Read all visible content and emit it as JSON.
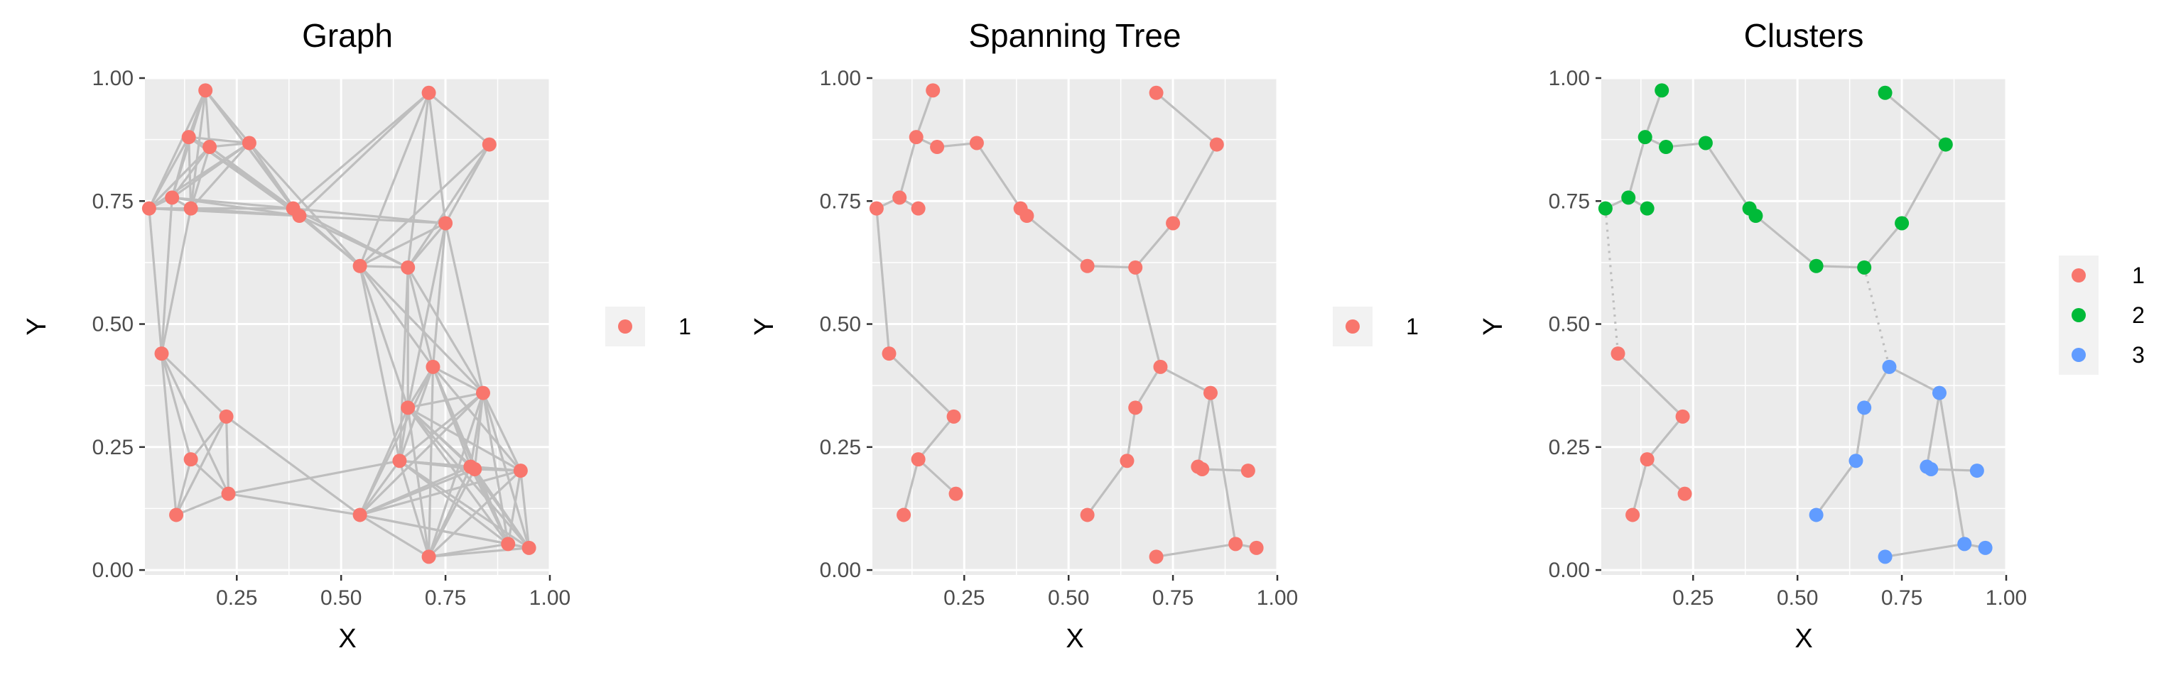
{
  "colors": {
    "panel_bg": "#EBEBEB",
    "grid": "#FFFFFF",
    "edge": "#BEBEBE",
    "tick_text": "#4D4D4D",
    "title_text": "#000000",
    "legend_key_bg": "#F2F2F2"
  },
  "chart_data": [
    {
      "type": "scatter",
      "title": "Graph",
      "xlabel": "X",
      "ylabel": "Y",
      "xlim": [
        0.03,
        1.0
      ],
      "ylim": [
        -0.01,
        1.0
      ],
      "x_ticks": [
        "0.25",
        "0.50",
        "0.75",
        "1.00"
      ],
      "y_ticks": [
        "0.00",
        "0.25",
        "0.50",
        "0.75",
        "1.00"
      ],
      "grid": true,
      "legend": {
        "position": "right",
        "entries": [
          {
            "label": "1",
            "color": "#F8766D"
          }
        ]
      },
      "edge_mode": "complete-local",
      "points": [
        {
          "x": 0.04,
          "y": 0.735,
          "c": 1
        },
        {
          "x": 0.07,
          "y": 0.44,
          "c": 1
        },
        {
          "x": 0.095,
          "y": 0.757,
          "c": 1
        },
        {
          "x": 0.135,
          "y": 0.88,
          "c": 1
        },
        {
          "x": 0.14,
          "y": 0.735,
          "c": 1
        },
        {
          "x": 0.14,
          "y": 0.225,
          "c": 1
        },
        {
          "x": 0.105,
          "y": 0.112,
          "c": 1
        },
        {
          "x": 0.175,
          "y": 0.975,
          "c": 1
        },
        {
          "x": 0.185,
          "y": 0.86,
          "c": 1
        },
        {
          "x": 0.28,
          "y": 0.868,
          "c": 1
        },
        {
          "x": 0.225,
          "y": 0.312,
          "c": 1
        },
        {
          "x": 0.23,
          "y": 0.155,
          "c": 1
        },
        {
          "x": 0.385,
          "y": 0.735,
          "c": 1
        },
        {
          "x": 0.4,
          "y": 0.72,
          "c": 1
        },
        {
          "x": 0.545,
          "y": 0.618,
          "c": 1
        },
        {
          "x": 0.545,
          "y": 0.112,
          "c": 1
        },
        {
          "x": 0.66,
          "y": 0.615,
          "c": 1
        },
        {
          "x": 0.64,
          "y": 0.222,
          "c": 1
        },
        {
          "x": 0.66,
          "y": 0.33,
          "c": 1
        },
        {
          "x": 0.71,
          "y": 0.97,
          "c": 1
        },
        {
          "x": 0.75,
          "y": 0.705,
          "c": 1
        },
        {
          "x": 0.72,
          "y": 0.413,
          "c": 1
        },
        {
          "x": 0.71,
          "y": 0.027,
          "c": 1
        },
        {
          "x": 0.855,
          "y": 0.865,
          "c": 1
        },
        {
          "x": 0.84,
          "y": 0.36,
          "c": 1
        },
        {
          "x": 0.81,
          "y": 0.21,
          "c": 1
        },
        {
          "x": 0.82,
          "y": 0.205,
          "c": 1
        },
        {
          "x": 0.93,
          "y": 0.202,
          "c": 1
        },
        {
          "x": 0.9,
          "y": 0.053,
          "c": 1
        },
        {
          "x": 0.95,
          "y": 0.045,
          "c": 1
        }
      ]
    },
    {
      "type": "scatter",
      "title": "Spanning Tree",
      "xlabel": "X",
      "ylabel": "Y",
      "xlim": [
        0.03,
        1.0
      ],
      "ylim": [
        -0.01,
        1.0
      ],
      "x_ticks": [
        "0.25",
        "0.50",
        "0.75",
        "1.00"
      ],
      "y_ticks": [
        "0.00",
        "0.25",
        "0.50",
        "0.75",
        "1.00"
      ],
      "grid": true,
      "legend": {
        "position": "right",
        "entries": [
          {
            "label": "1",
            "color": "#F8766D"
          }
        ]
      },
      "edge_mode": "list",
      "points": [
        {
          "x": 0.04,
          "y": 0.735,
          "c": 1
        },
        {
          "x": 0.07,
          "y": 0.44,
          "c": 1
        },
        {
          "x": 0.095,
          "y": 0.757,
          "c": 1
        },
        {
          "x": 0.135,
          "y": 0.88,
          "c": 1
        },
        {
          "x": 0.14,
          "y": 0.735,
          "c": 1
        },
        {
          "x": 0.14,
          "y": 0.225,
          "c": 1
        },
        {
          "x": 0.105,
          "y": 0.112,
          "c": 1
        },
        {
          "x": 0.175,
          "y": 0.975,
          "c": 1
        },
        {
          "x": 0.185,
          "y": 0.86,
          "c": 1
        },
        {
          "x": 0.28,
          "y": 0.868,
          "c": 1
        },
        {
          "x": 0.225,
          "y": 0.312,
          "c": 1
        },
        {
          "x": 0.23,
          "y": 0.155,
          "c": 1
        },
        {
          "x": 0.385,
          "y": 0.735,
          "c": 1
        },
        {
          "x": 0.4,
          "y": 0.72,
          "c": 1
        },
        {
          "x": 0.545,
          "y": 0.618,
          "c": 1
        },
        {
          "x": 0.545,
          "y": 0.112,
          "c": 1
        },
        {
          "x": 0.66,
          "y": 0.615,
          "c": 1
        },
        {
          "x": 0.64,
          "y": 0.222,
          "c": 1
        },
        {
          "x": 0.66,
          "y": 0.33,
          "c": 1
        },
        {
          "x": 0.71,
          "y": 0.97,
          "c": 1
        },
        {
          "x": 0.75,
          "y": 0.705,
          "c": 1
        },
        {
          "x": 0.72,
          "y": 0.413,
          "c": 1
        },
        {
          "x": 0.71,
          "y": 0.027,
          "c": 1
        },
        {
          "x": 0.855,
          "y": 0.865,
          "c": 1
        },
        {
          "x": 0.84,
          "y": 0.36,
          "c": 1
        },
        {
          "x": 0.81,
          "y": 0.21,
          "c": 1
        },
        {
          "x": 0.82,
          "y": 0.205,
          "c": 1
        },
        {
          "x": 0.93,
          "y": 0.202,
          "c": 1
        },
        {
          "x": 0.9,
          "y": 0.053,
          "c": 1
        },
        {
          "x": 0.95,
          "y": 0.045,
          "c": 1
        }
      ],
      "edges": [
        [
          0,
          1
        ],
        [
          0,
          2
        ],
        [
          2,
          3
        ],
        [
          2,
          4
        ],
        [
          3,
          7
        ],
        [
          3,
          8
        ],
        [
          8,
          9
        ],
        [
          9,
          12
        ],
        [
          12,
          13
        ],
        [
          13,
          14
        ],
        [
          14,
          16
        ],
        [
          16,
          20
        ],
        [
          20,
          23
        ],
        [
          23,
          19
        ],
        [
          16,
          21
        ],
        [
          1,
          10
        ],
        [
          10,
          5
        ],
        [
          5,
          6
        ],
        [
          5,
          11
        ],
        [
          21,
          18
        ],
        [
          18,
          17
        ],
        [
          17,
          15
        ],
        [
          21,
          24
        ],
        [
          24,
          25
        ],
        [
          25,
          26
        ],
        [
          26,
          27
        ],
        [
          24,
          28
        ],
        [
          28,
          22
        ],
        [
          28,
          29
        ]
      ],
      "dotted_edges": []
    },
    {
      "type": "scatter",
      "title": "Clusters",
      "xlabel": "X",
      "ylabel": "Y",
      "xlim": [
        0.03,
        1.0
      ],
      "ylim": [
        -0.01,
        1.0
      ],
      "x_ticks": [
        "0.25",
        "0.50",
        "0.75",
        "1.00"
      ],
      "y_ticks": [
        "0.00",
        "0.25",
        "0.50",
        "0.75",
        "1.00"
      ],
      "grid": true,
      "legend": {
        "position": "right",
        "entries": [
          {
            "label": "1",
            "color": "#F8766D"
          },
          {
            "label": "2",
            "color": "#00BA38"
          },
          {
            "label": "3",
            "color": "#619CFF"
          }
        ]
      },
      "edge_mode": "list",
      "points": [
        {
          "x": 0.04,
          "y": 0.735,
          "c": 2
        },
        {
          "x": 0.07,
          "y": 0.44,
          "c": 1
        },
        {
          "x": 0.095,
          "y": 0.757,
          "c": 2
        },
        {
          "x": 0.135,
          "y": 0.88,
          "c": 2
        },
        {
          "x": 0.14,
          "y": 0.735,
          "c": 2
        },
        {
          "x": 0.14,
          "y": 0.225,
          "c": 1
        },
        {
          "x": 0.105,
          "y": 0.112,
          "c": 1
        },
        {
          "x": 0.175,
          "y": 0.975,
          "c": 2
        },
        {
          "x": 0.185,
          "y": 0.86,
          "c": 2
        },
        {
          "x": 0.28,
          "y": 0.868,
          "c": 2
        },
        {
          "x": 0.225,
          "y": 0.312,
          "c": 1
        },
        {
          "x": 0.23,
          "y": 0.155,
          "c": 1
        },
        {
          "x": 0.385,
          "y": 0.735,
          "c": 2
        },
        {
          "x": 0.4,
          "y": 0.72,
          "c": 2
        },
        {
          "x": 0.545,
          "y": 0.618,
          "c": 2
        },
        {
          "x": 0.545,
          "y": 0.112,
          "c": 3
        },
        {
          "x": 0.66,
          "y": 0.615,
          "c": 2
        },
        {
          "x": 0.64,
          "y": 0.222,
          "c": 3
        },
        {
          "x": 0.66,
          "y": 0.33,
          "c": 3
        },
        {
          "x": 0.71,
          "y": 0.97,
          "c": 2
        },
        {
          "x": 0.75,
          "y": 0.705,
          "c": 2
        },
        {
          "x": 0.72,
          "y": 0.413,
          "c": 3
        },
        {
          "x": 0.71,
          "y": 0.027,
          "c": 3
        },
        {
          "x": 0.855,
          "y": 0.865,
          "c": 2
        },
        {
          "x": 0.84,
          "y": 0.36,
          "c": 3
        },
        {
          "x": 0.81,
          "y": 0.21,
          "c": 3
        },
        {
          "x": 0.82,
          "y": 0.205,
          "c": 3
        },
        {
          "x": 0.93,
          "y": 0.202,
          "c": 3
        },
        {
          "x": 0.9,
          "y": 0.053,
          "c": 3
        },
        {
          "x": 0.95,
          "y": 0.045,
          "c": 3
        }
      ],
      "edges": [
        [
          0,
          2
        ],
        [
          2,
          3
        ],
        [
          2,
          4
        ],
        [
          3,
          7
        ],
        [
          3,
          8
        ],
        [
          8,
          9
        ],
        [
          9,
          12
        ],
        [
          12,
          13
        ],
        [
          13,
          14
        ],
        [
          14,
          16
        ],
        [
          16,
          20
        ],
        [
          20,
          23
        ],
        [
          23,
          19
        ],
        [
          1,
          10
        ],
        [
          10,
          5
        ],
        [
          5,
          6
        ],
        [
          5,
          11
        ],
        [
          21,
          18
        ],
        [
          18,
          17
        ],
        [
          17,
          15
        ],
        [
          21,
          24
        ],
        [
          24,
          25
        ],
        [
          25,
          26
        ],
        [
          26,
          27
        ],
        [
          24,
          28
        ],
        [
          28,
          22
        ],
        [
          28,
          29
        ]
      ],
      "dotted_edges": [
        [
          0,
          1
        ],
        [
          16,
          21
        ]
      ]
    }
  ]
}
